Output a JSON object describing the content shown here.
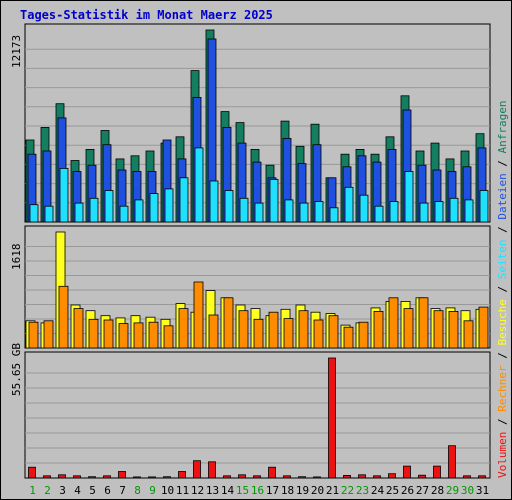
{
  "chart_data": {
    "type": "bar",
    "title": "Tages-Statistik im Monat Maerz 2025",
    "categories": [
      "1",
      "2",
      "3",
      "4",
      "5",
      "6",
      "7",
      "8",
      "9",
      "10",
      "11",
      "12",
      "13",
      "14",
      "15",
      "16",
      "17",
      "18",
      "19",
      "20",
      "21",
      "22",
      "23",
      "24",
      "25",
      "26",
      "27",
      "28",
      "29",
      "30",
      "31"
    ],
    "weekend_days": [
      "1",
      "2",
      "8",
      "9",
      "15",
      "16",
      "22",
      "23",
      "29",
      "30"
    ],
    "colors": {
      "frame_bg": "#c0c0c0",
      "title": "#0000cc",
      "weekday_label": "#000000",
      "weekend_label": "#009900",
      "hits": "#137e60",
      "files": "#2050e0",
      "pages": "#20e0ff",
      "visits": "#ffff20",
      "sites": "#ff8c00",
      "volume": "#ee1111"
    },
    "panels": [
      {
        "name": "hits-files-pages",
        "ymax_label": "12173",
        "ymax": 12173,
        "series": [
          {
            "name": "Anfragen",
            "values": [
              5200,
              6000,
              7500,
              3900,
              4600,
              5800,
              4000,
              4200,
              4500,
              5000,
              5400,
              9600,
              12173,
              7000,
              6300,
              4600,
              3600,
              6400,
              4800,
              6200,
              2800,
              4300,
              4600,
              4300,
              5400,
              8000,
              4500,
              5000,
              4000,
              4500,
              5600
            ]
          },
          {
            "name": "Dateien",
            "values": [
              4300,
              4500,
              6600,
              3200,
              3600,
              4900,
              3300,
              3200,
              3200,
              5200,
              4000,
              7900,
              11600,
              6000,
              5000,
              3800,
              2800,
              5300,
              3700,
              4900,
              2800,
              3500,
              4200,
              3800,
              4600,
              7100,
              3600,
              3300,
              3200,
              3500,
              4700
            ]
          },
          {
            "name": "Seiten",
            "values": [
              1100,
              1000,
              3400,
              1200,
              1500,
              2000,
              1000,
              1400,
              1800,
              2100,
              2800,
              4700,
              2600,
              2000,
              1500,
              1200,
              2700,
              1400,
              1200,
              1300,
              900,
              2200,
              1700,
              1000,
              1300,
              3200,
              1200,
              1300,
              1500,
              1400,
              2000
            ]
          }
        ]
      },
      {
        "name": "visits-sites",
        "ymax_label": "1618",
        "ymax": 1618,
        "series": [
          {
            "name": "Besuche",
            "values": [
              380,
              350,
              1618,
              600,
              520,
              450,
              420,
              450,
              430,
              400,
              620,
              500,
              800,
              700,
              600,
              550,
              450,
              540,
              600,
              500,
              480,
              320,
              350,
              560,
              650,
              650,
              700,
              550,
              560,
              520,
              540
            ]
          },
          {
            "name": "Rechner",
            "values": [
              360,
              380,
              860,
              550,
              400,
              390,
              340,
              350,
              360,
              310,
              550,
              920,
              460,
              700,
              520,
              400,
              500,
              410,
              520,
              390,
              450,
              290,
              360,
              510,
              700,
              550,
              700,
              520,
              510,
              380,
              570
            ]
          }
        ]
      },
      {
        "name": "volume",
        "ymax_label": "55.65 GB",
        "ymax": 55.65,
        "series": [
          {
            "name": "Volumen",
            "values": [
              5.0,
              1.0,
              1.5,
              1.0,
              0.6,
              1.0,
              3.0,
              0.5,
              0.5,
              0.6,
              3.0,
              8.0,
              7.5,
              1.0,
              1.5,
              1.0,
              5.0,
              1.0,
              0.6,
              0.5,
              55.65,
              1.2,
              1.5,
              1.0,
              2.0,
              5.5,
              1.3,
              5.5,
              15.0,
              1.0,
              1.0
            ]
          }
        ]
      }
    ],
    "legend": {
      "orientation": "vertical-right",
      "entries": [
        {
          "text": "Volumen",
          "series": "volume"
        },
        {
          "text": " / ",
          "series": "sep"
        },
        {
          "text": "Rechner",
          "series": "sites"
        },
        {
          "text": " / ",
          "series": "sep"
        },
        {
          "text": "Besuche",
          "series": "visits"
        },
        {
          "text": " / ",
          "series": "sep"
        },
        {
          "text": "Seiten",
          "series": "pages"
        },
        {
          "text": " / ",
          "series": "sep"
        },
        {
          "text": "Dateien",
          "series": "files"
        },
        {
          "text": " / ",
          "series": "sep"
        },
        {
          "text": "Anfragen",
          "series": "hits"
        }
      ]
    }
  }
}
